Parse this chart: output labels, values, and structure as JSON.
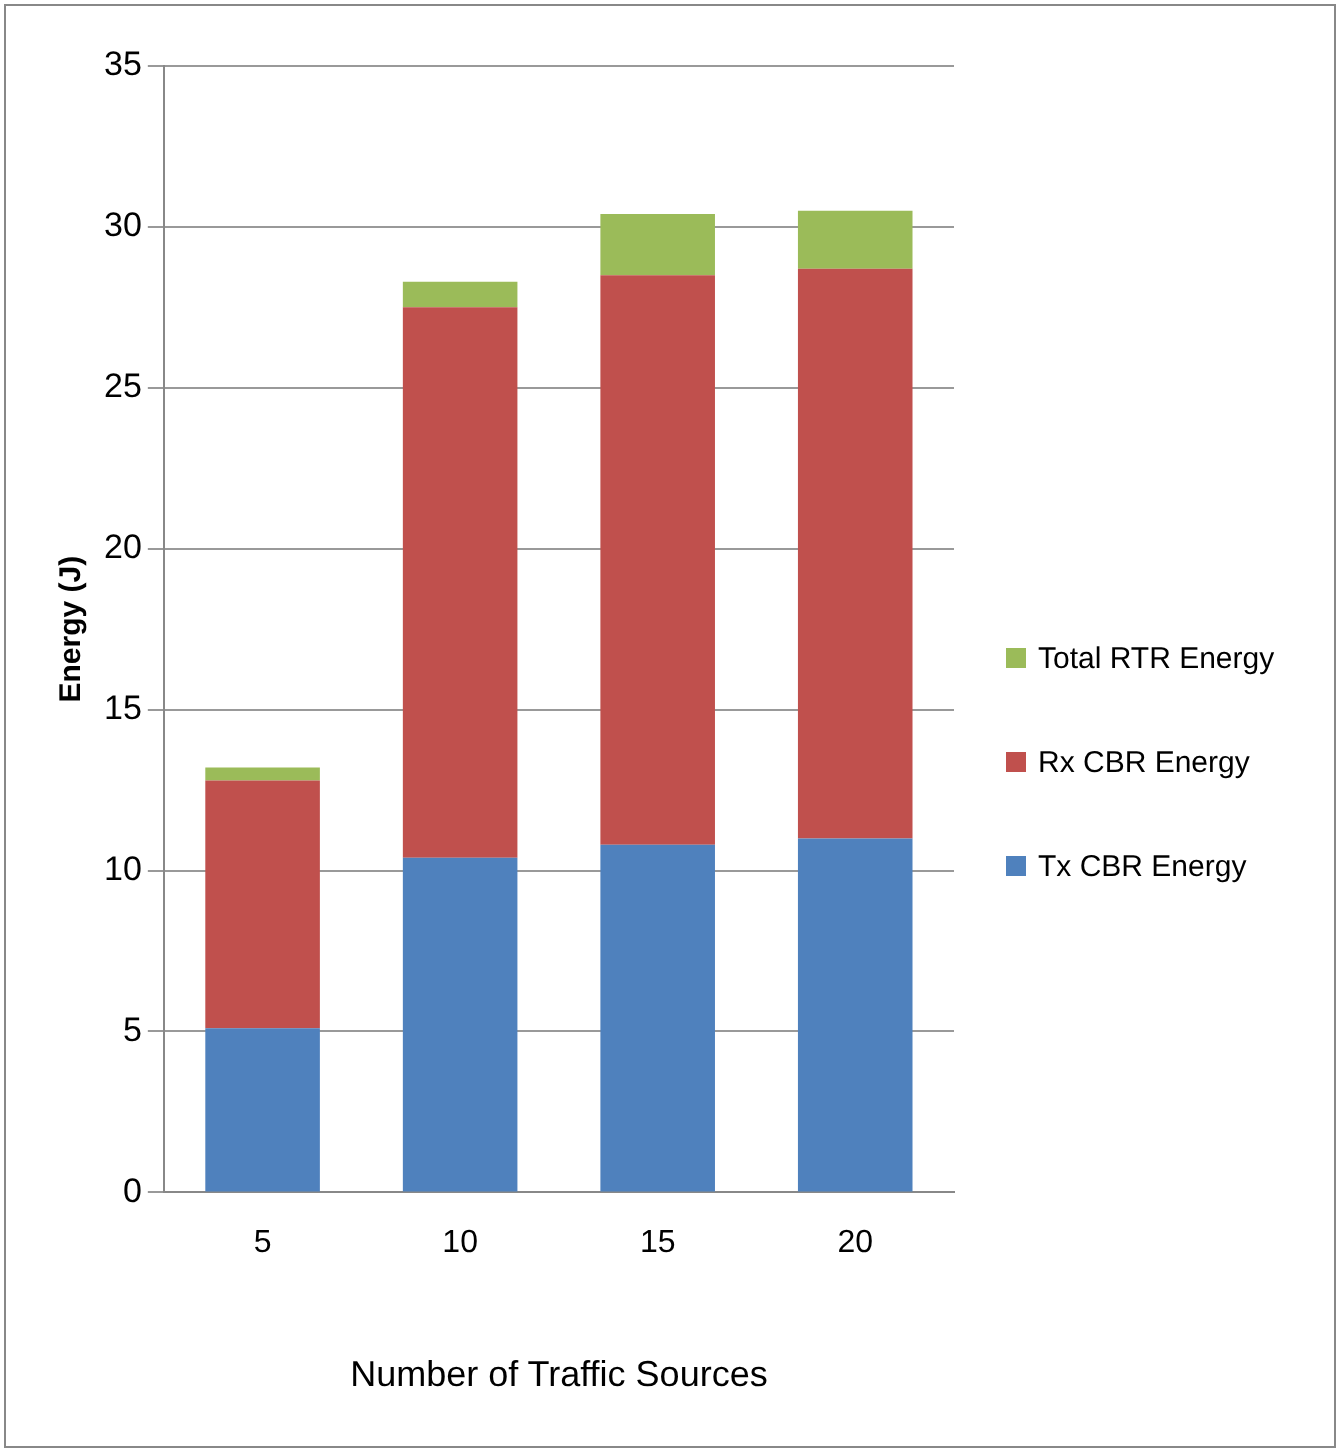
{
  "chart_data": {
    "type": "bar",
    "stacked": true,
    "xlabel": "Number of Traffic Sources",
    "ylabel": "Energy (J)",
    "categories": [
      "5",
      "10",
      "15",
      "20"
    ],
    "series": [
      {
        "name": "Tx CBR Energy",
        "color": "#4f81bd",
        "values": [
          5.1,
          10.4,
          10.8,
          11.0
        ]
      },
      {
        "name": "Rx CBR Energy",
        "color": "#c0504d",
        "values": [
          7.7,
          17.1,
          17.7,
          17.7
        ]
      },
      {
        "name": "Total RTR Energy",
        "color": "#9bbb59",
        "values": [
          0.4,
          0.8,
          1.9,
          1.8
        ]
      }
    ],
    "ylim": [
      0,
      35
    ],
    "yticks": [
      0,
      5,
      10,
      15,
      20,
      25,
      30,
      35
    ],
    "grid": "y",
    "legend": "right"
  }
}
